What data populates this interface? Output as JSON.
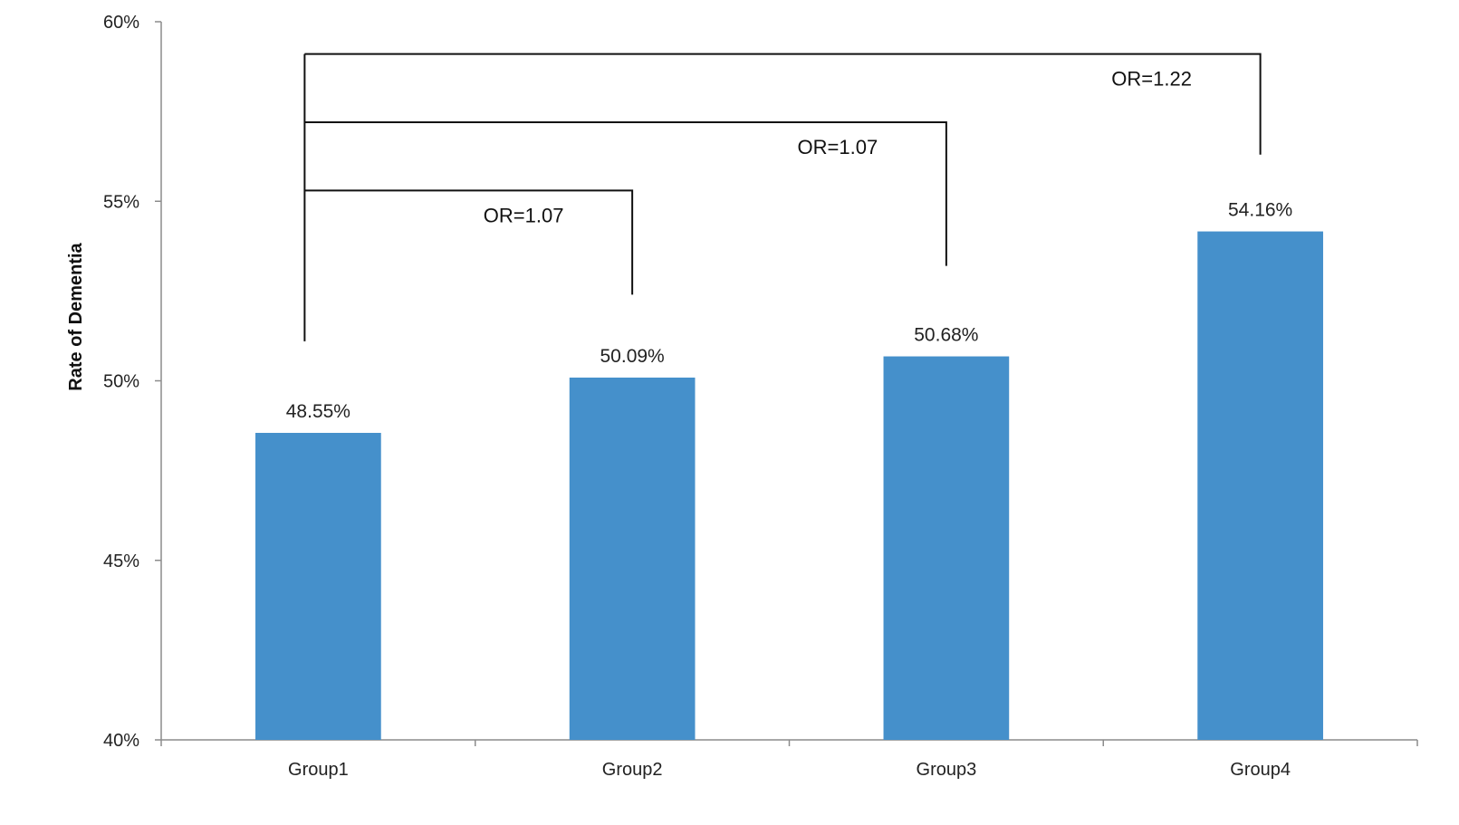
{
  "chart_data": {
    "type": "bar",
    "title": "",
    "xlabel": "",
    "ylabel": "Rate of Dementia",
    "categories": [
      "Group1",
      "Group2",
      "Group3",
      "Group4"
    ],
    "series": [
      {
        "values": [
          48.55,
          50.09,
          50.68,
          54.16
        ]
      }
    ],
    "data_labels": [
      "48.55%",
      "50.09%",
      "50.68%",
      "54.16%"
    ],
    "ylim": [
      40,
      60
    ],
    "yticks": [
      40,
      45,
      50,
      55,
      60
    ],
    "ytick_labels": [
      "40%",
      "45%",
      "50%",
      "55%",
      "60%"
    ],
    "grid": false,
    "legend": "none",
    "bar_color": "#4590CB",
    "annotations": [
      {
        "from": "Group1",
        "to": "Group4",
        "text": "OR=1.22",
        "bracket_level": 59.1,
        "tip_level": 56.3
      },
      {
        "from": "Group1",
        "to": "Group3",
        "text": "OR=1.07",
        "bracket_level": 57.2,
        "tip_level": 53.2
      },
      {
        "from": "Group1",
        "to": "Group2",
        "text": "OR=1.07",
        "bracket_level": 55.3,
        "tip_level": 52.4
      }
    ],
    "annotation_base_level": 51.1
  }
}
